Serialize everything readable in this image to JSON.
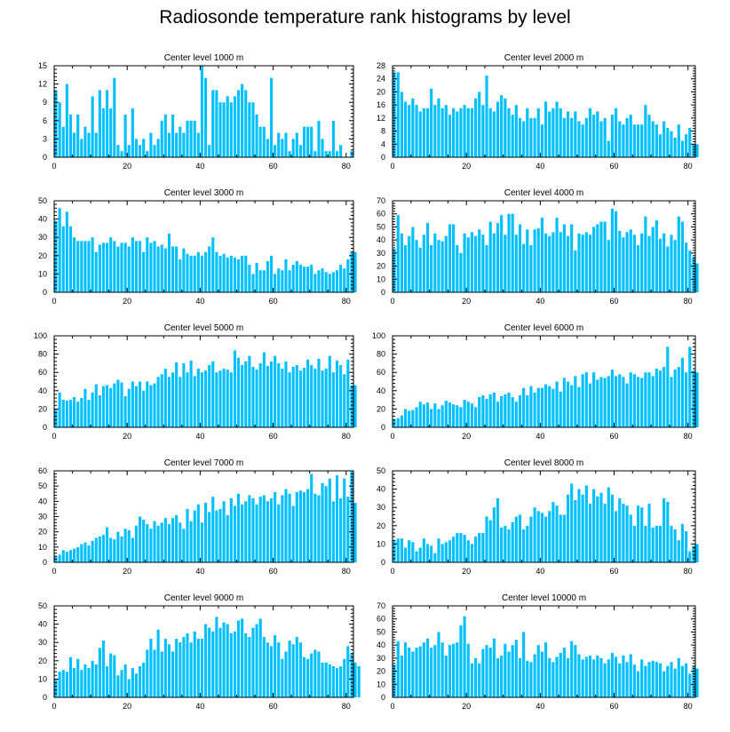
{
  "title": "Radiosonde temperature rank histograms by level",
  "bar_color": "#00bfff",
  "chart_data": [
    {
      "type": "bar",
      "title": "Center level 1000 m",
      "xlabel": "",
      "ylabel": "",
      "xlim": [
        0,
        82
      ],
      "ylim": [
        0,
        15
      ],
      "x_ticks": [
        0,
        20,
        40,
        60,
        80
      ],
      "y_ticks": [
        0,
        3,
        6,
        9,
        12,
        15
      ],
      "values": [
        11,
        9,
        5,
        12,
        7,
        4,
        7,
        3,
        5,
        4,
        10,
        4,
        11,
        8,
        11,
        8,
        13,
        2,
        1,
        7,
        2,
        8,
        3,
        2,
        3,
        1,
        4,
        2,
        3,
        6,
        7,
        4,
        7,
        4,
        5,
        4,
        6,
        6,
        6,
        4,
        15,
        13,
        2,
        11,
        11,
        9,
        9,
        10,
        9,
        10,
        11,
        12,
        11,
        9,
        9,
        7,
        5,
        5,
        3,
        13,
        2,
        4,
        3,
        4,
        1,
        3,
        4,
        2,
        5,
        5,
        5,
        1,
        6,
        3,
        1,
        1,
        6,
        1,
        2,
        0,
        0,
        1,
        0
      ]
    },
    {
      "type": "bar",
      "title": "Center level 2000 m",
      "xlabel": "",
      "ylabel": "",
      "xlim": [
        0,
        82
      ],
      "ylim": [
        0,
        28
      ],
      "x_ticks": [
        0,
        20,
        40,
        60,
        80
      ],
      "y_ticks": [
        0,
        4,
        8,
        12,
        16,
        20,
        24,
        28
      ],
      "values": [
        26,
        26,
        20,
        17,
        16,
        18,
        16,
        14,
        15,
        15,
        21,
        16,
        18,
        15,
        16,
        13,
        15,
        14,
        15,
        16,
        15,
        15,
        18,
        20,
        16,
        25,
        15,
        14,
        17,
        19,
        18,
        15,
        13,
        16,
        12,
        11,
        15,
        12,
        12,
        15,
        10,
        17,
        14,
        15,
        17,
        15,
        12,
        14,
        12,
        14,
        11,
        10,
        12,
        15,
        13,
        14,
        11,
        12,
        5,
        13,
        15,
        11,
        10,
        12,
        13,
        10,
        10,
        10,
        16,
        13,
        11,
        10,
        7,
        11,
        9,
        8,
        6,
        10,
        5,
        7,
        9,
        4,
        4
      ]
    },
    {
      "type": "bar",
      "title": "Center level 3000 m",
      "xlabel": "",
      "ylabel": "",
      "xlim": [
        0,
        82
      ],
      "ylim": [
        0,
        50
      ],
      "x_ticks": [
        0,
        20,
        40,
        60,
        80
      ],
      "y_ticks": [
        0,
        10,
        20,
        30,
        40,
        50
      ],
      "values": [
        39,
        46,
        36,
        44,
        36,
        30,
        28,
        28,
        28,
        28,
        30,
        22,
        26,
        27,
        27,
        30,
        28,
        25,
        27,
        27,
        25,
        30,
        28,
        28,
        22,
        30,
        27,
        28,
        25,
        26,
        24,
        32,
        25,
        25,
        18,
        24,
        21,
        20,
        20,
        22,
        20,
        22,
        25,
        30,
        22,
        20,
        21,
        19,
        20,
        19,
        18,
        20,
        20,
        15,
        10,
        16,
        12,
        12,
        17,
        20,
        10,
        13,
        12,
        18,
        12,
        15,
        17,
        15,
        14,
        14,
        15,
        10,
        12,
        13,
        11,
        10,
        11,
        12,
        15,
        13,
        18,
        22,
        22
      ]
    },
    {
      "type": "bar",
      "title": "Center level 4000 m",
      "xlabel": "",
      "ylabel": "",
      "xlim": [
        0,
        82
      ],
      "ylim": [
        0,
        70
      ],
      "x_ticks": [
        0,
        20,
        40,
        60,
        80
      ],
      "y_ticks": [
        0,
        10,
        20,
        30,
        40,
        50,
        60,
        70
      ],
      "values": [
        33,
        59,
        45,
        36,
        43,
        50,
        40,
        34,
        44,
        53,
        36,
        45,
        40,
        39,
        43,
        52,
        52,
        36,
        30,
        45,
        42,
        46,
        43,
        48,
        44,
        36,
        54,
        45,
        53,
        59,
        44,
        60,
        60,
        44,
        52,
        37,
        48,
        36,
        48,
        49,
        57,
        45,
        43,
        46,
        57,
        46,
        52,
        43,
        52,
        32,
        45,
        44,
        46,
        44,
        50,
        52,
        54,
        54,
        40,
        64,
        62,
        47,
        42,
        46,
        48,
        44,
        36,
        45,
        58,
        43,
        50,
        55,
        41,
        45,
        35,
        44,
        40,
        58,
        54,
        38,
        32,
        27,
        22
      ]
    },
    {
      "type": "bar",
      "title": "Center level 5000 m",
      "xlabel": "",
      "ylabel": "",
      "xlim": [
        0,
        82
      ],
      "ylim": [
        0,
        100
      ],
      "x_ticks": [
        0,
        20,
        40,
        60,
        80
      ],
      "y_ticks": [
        0,
        20,
        40,
        60,
        80,
        100
      ],
      "values": [
        20,
        38,
        30,
        29,
        30,
        33,
        28,
        32,
        42,
        30,
        38,
        47,
        35,
        45,
        46,
        43,
        48,
        52,
        49,
        34,
        42,
        50,
        45,
        50,
        40,
        50,
        46,
        48,
        55,
        58,
        64,
        55,
        60,
        71,
        55,
        70,
        60,
        73,
        56,
        64,
        60,
        62,
        68,
        72,
        60,
        62,
        64,
        63,
        60,
        84,
        76,
        68,
        72,
        78,
        66,
        63,
        70,
        82,
        67,
        72,
        78,
        70,
        64,
        72,
        60,
        66,
        68,
        62,
        65,
        74,
        68,
        64,
        75,
        62,
        64,
        78,
        60,
        73,
        68,
        58,
        74,
        46,
        46
      ]
    },
    {
      "type": "bar",
      "title": "Center level 6000 m",
      "xlabel": "",
      "ylabel": "",
      "xlim": [
        0,
        82
      ],
      "ylim": [
        0,
        100
      ],
      "x_ticks": [
        0,
        20,
        40,
        60,
        80
      ],
      "y_ticks": [
        0,
        20,
        40,
        60,
        80,
        100
      ],
      "values": [
        9,
        10,
        13,
        20,
        18,
        19,
        22,
        28,
        25,
        27,
        20,
        26,
        20,
        24,
        29,
        27,
        25,
        24,
        22,
        30,
        28,
        26,
        22,
        33,
        35,
        31,
        36,
        38,
        28,
        34,
        36,
        38,
        33,
        28,
        35,
        43,
        35,
        45,
        38,
        43,
        43,
        47,
        45,
        42,
        50,
        39,
        54,
        50,
        46,
        56,
        44,
        58,
        60,
        48,
        60,
        52,
        55,
        54,
        56,
        63,
        56,
        58,
        55,
        48,
        60,
        58,
        55,
        54,
        60,
        60,
        56,
        64,
        62,
        66,
        88,
        55,
        63,
        66,
        76,
        60,
        88,
        62,
        60
      ]
    },
    {
      "type": "bar",
      "title": "Center level 7000 m",
      "xlabel": "",
      "ylabel": "",
      "xlim": [
        0,
        82
      ],
      "ylim": [
        0,
        60
      ],
      "x_ticks": [
        0,
        20,
        40,
        60,
        80
      ],
      "y_ticks": [
        0,
        10,
        20,
        30,
        40,
        50,
        60
      ],
      "values": [
        4,
        5,
        8,
        7,
        8,
        9,
        10,
        12,
        13,
        11,
        14,
        16,
        17,
        18,
        23,
        16,
        15,
        20,
        17,
        22,
        21,
        16,
        24,
        30,
        28,
        25,
        22,
        27,
        24,
        26,
        29,
        25,
        29,
        31,
        26,
        22,
        35,
        27,
        34,
        38,
        26,
        39,
        33,
        43,
        34,
        35,
        40,
        31,
        42,
        37,
        45,
        38,
        40,
        44,
        42,
        38,
        43,
        44,
        40,
        42,
        46,
        38,
        44,
        48,
        45,
        37,
        46,
        47,
        46,
        48,
        58,
        45,
        44,
        52,
        50,
        55,
        40,
        57,
        42,
        55,
        43,
        60,
        39
      ]
    },
    {
      "type": "bar",
      "title": "Center level 8000 m",
      "xlabel": "",
      "ylabel": "",
      "xlim": [
        0,
        82
      ],
      "ylim": [
        0,
        50
      ],
      "x_ticks": [
        0,
        20,
        40,
        60,
        80
      ],
      "y_ticks": [
        0,
        10,
        20,
        30,
        40,
        50
      ],
      "values": [
        12,
        13,
        13,
        8,
        12,
        11,
        6,
        8,
        13,
        10,
        9,
        5,
        13,
        10,
        11,
        12,
        14,
        16,
        16,
        15,
        12,
        10,
        14,
        16,
        16,
        25,
        23,
        30,
        35,
        19,
        20,
        18,
        22,
        25,
        26,
        18,
        20,
        25,
        30,
        28,
        27,
        25,
        28,
        33,
        31,
        26,
        26,
        37,
        43,
        34,
        40,
        37,
        42,
        32,
        40,
        36,
        38,
        32,
        41,
        37,
        28,
        35,
        32,
        31,
        26,
        20,
        31,
        30,
        20,
        32,
        19,
        20,
        20,
        35,
        33,
        20,
        18,
        12,
        21,
        17,
        6,
        9,
        10
      ]
    },
    {
      "type": "bar",
      "title": "Center level 9000 m",
      "xlabel": "",
      "ylabel": "",
      "xlim": [
        0,
        82
      ],
      "ylim": [
        0,
        50
      ],
      "x_ticks": [
        0,
        20,
        40,
        60,
        80
      ],
      "y_ticks": [
        0,
        10,
        20,
        30,
        40,
        50
      ],
      "values": [
        10,
        14,
        15,
        14,
        22,
        16,
        21,
        15,
        18,
        16,
        20,
        18,
        27,
        31,
        17,
        24,
        23,
        12,
        15,
        18,
        10,
        16,
        13,
        17,
        19,
        26,
        32,
        26,
        37,
        25,
        32,
        29,
        25,
        32,
        30,
        33,
        35,
        30,
        36,
        32,
        32,
        40,
        38,
        36,
        44,
        38,
        41,
        40,
        35,
        36,
        42,
        43,
        35,
        33,
        38,
        40,
        43,
        33,
        30,
        28,
        34,
        30,
        21,
        25,
        31,
        29,
        33,
        30,
        22,
        21,
        24,
        26,
        25,
        19,
        19,
        18,
        17,
        16,
        17,
        21,
        28,
        24,
        19,
        17
      ]
    },
    {
      "type": "bar",
      "title": "Center level 10000 m",
      "xlabel": "",
      "ylabel": "",
      "xlim": [
        0,
        82
      ],
      "ylim": [
        0,
        70
      ],
      "x_ticks": [
        0,
        20,
        40,
        60,
        80
      ],
      "y_ticks": [
        0,
        10,
        20,
        30,
        40,
        50,
        60,
        70
      ],
      "values": [
        25,
        43,
        32,
        42,
        38,
        35,
        38,
        39,
        42,
        45,
        38,
        40,
        50,
        42,
        32,
        40,
        41,
        42,
        55,
        62,
        41,
        26,
        30,
        26,
        37,
        40,
        38,
        45,
        30,
        32,
        41,
        35,
        40,
        44,
        30,
        50,
        28,
        27,
        33,
        40,
        35,
        42,
        30,
        27,
        31,
        34,
        38,
        30,
        43,
        40,
        33,
        29,
        31,
        32,
        29,
        32,
        30,
        26,
        29,
        34,
        31,
        26,
        32,
        27,
        33,
        25,
        20,
        29,
        24,
        27,
        28,
        27,
        26,
        20,
        24,
        27,
        22,
        30,
        24,
        26,
        18,
        24,
        22
      ]
    }
  ]
}
